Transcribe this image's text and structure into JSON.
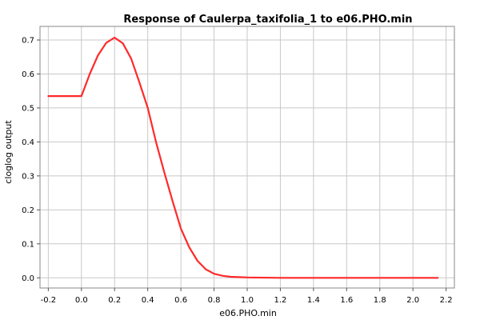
{
  "chart_data": {
    "type": "line",
    "title": "Response of Caulerpa_taxifolia_1 to e06.PHO.min",
    "xlabel": "e06.PHO.min",
    "ylabel": "cloglog output",
    "xlim": [
      -0.25,
      2.25
    ],
    "ylim": [
      -0.03,
      0.74
    ],
    "xticks": [
      "-0.2",
      "0.0",
      "0.2",
      "0.4",
      "0.6",
      "0.8",
      "1.0",
      "1.2",
      "1.4",
      "1.6",
      "1.8",
      "2.0",
      "2.2"
    ],
    "yticks": [
      "0.0",
      "0.1",
      "0.2",
      "0.3",
      "0.4",
      "0.5",
      "0.6",
      "0.7"
    ],
    "grid": true,
    "series": [
      {
        "color": "#ff2a2a",
        "x": [
          -0.2,
          0.0,
          0.05,
          0.1,
          0.15,
          0.2,
          0.25,
          0.3,
          0.35,
          0.4,
          0.45,
          0.5,
          0.55,
          0.6,
          0.65,
          0.7,
          0.75,
          0.8,
          0.85,
          0.9,
          0.95,
          1.0,
          1.2,
          1.4,
          1.6,
          1.8,
          2.0,
          2.15
        ],
        "y": [
          0.535,
          0.535,
          0.6,
          0.655,
          0.692,
          0.707,
          0.69,
          0.645,
          0.575,
          0.5,
          0.4,
          0.31,
          0.225,
          0.145,
          0.09,
          0.05,
          0.025,
          0.012,
          0.006,
          0.003,
          0.002,
          0.001,
          0.0,
          0.0,
          0.0,
          0.0,
          0.0,
          0.0
        ]
      }
    ]
  }
}
